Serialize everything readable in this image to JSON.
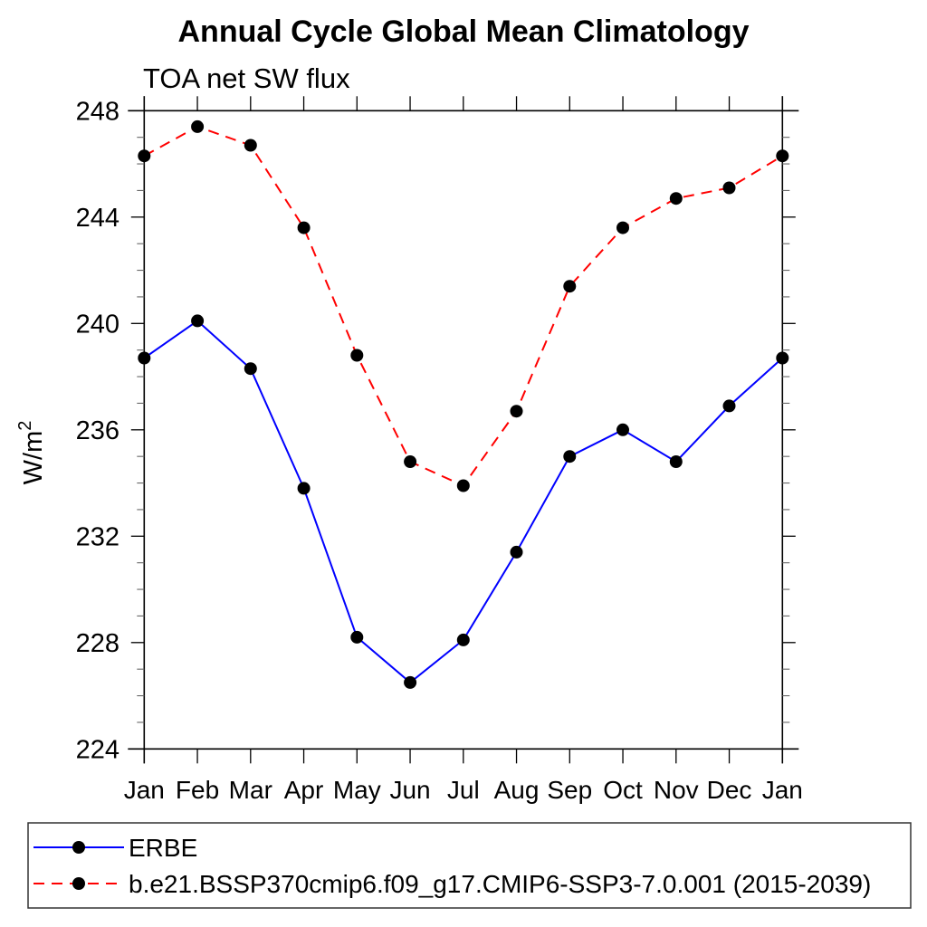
{
  "chart_data": {
    "type": "line",
    "title": "Annual Cycle Global Mean Climatology",
    "subtitle": "TOA net SW flux",
    "ylabel_base": "W/m",
    "ylabel_sup": "2",
    "categories": [
      "Jan",
      "Feb",
      "Mar",
      "Apr",
      "May",
      "Jun",
      "Jul",
      "Aug",
      "Sep",
      "Oct",
      "Nov",
      "Dec",
      "Jan"
    ],
    "ylim": [
      224,
      248
    ],
    "ytick_major": 4,
    "ytick_minor": 1,
    "ytick_labels": [
      "224",
      "228",
      "232",
      "236",
      "240",
      "244",
      "248"
    ],
    "grid": false,
    "legend_position": "bottom-left-box",
    "marker": "filled-circle",
    "marker_color": "#000000",
    "series": [
      {
        "name": "ERBE",
        "color": "#0000ff",
        "style": "solid",
        "values": [
          238.7,
          240.1,
          238.3,
          233.8,
          228.2,
          226.5,
          228.1,
          231.4,
          235.0,
          236.0,
          234.8,
          236.9,
          238.7
        ]
      },
      {
        "name": "b.e21.BSSP370cmip6.f09_g17.CMIP6-SSP3-7.0.001 (2015-2039)",
        "color": "#ff0000",
        "style": "dashed",
        "values": [
          246.3,
          247.4,
          246.7,
          243.6,
          238.8,
          234.8,
          233.9,
          236.7,
          241.4,
          243.6,
          244.7,
          245.1,
          246.3
        ]
      }
    ]
  }
}
